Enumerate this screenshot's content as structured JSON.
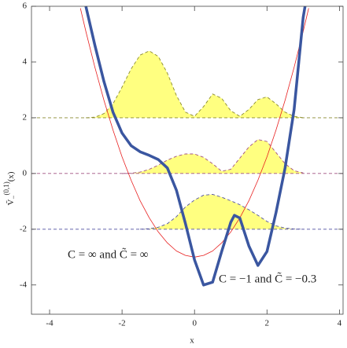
{
  "chart_data": {
    "type": "line",
    "x_label": "x",
    "y_label": {
      "base": "Ṽ",
      "sub": "−",
      "sup": "(0,1)",
      "arg": "(x)"
    },
    "xlim": [
      -4.5,
      4.1
    ],
    "xticks": [
      -4,
      -2,
      0,
      2,
      4
    ],
    "ylim": [
      -5.05,
      6
    ],
    "yticks": [
      -4,
      -2,
      0,
      2,
      4,
      6
    ],
    "potentials": [
      {
        "color": "#e82020",
        "x": [
          -3.15,
          -3.0,
          -2.75,
          -2.5,
          -2.25,
          -2.0,
          -1.75,
          -1.5,
          -1.25,
          -1.0,
          -0.75,
          -0.5,
          -0.25,
          0,
          0.25,
          0.5,
          0.75,
          1.0,
          1.25,
          1.5,
          1.75,
          2.0,
          2.25,
          2.5,
          2.75,
          3.0,
          3.15
        ],
        "values": [
          5.93,
          5.1,
          3.81,
          2.63,
          1.56,
          0.6,
          -0.24,
          -0.98,
          -1.59,
          -2.1,
          -2.49,
          -2.78,
          -2.94,
          -3.0,
          -2.94,
          -2.78,
          -2.49,
          -2.1,
          -1.59,
          -0.98,
          -0.24,
          0.6,
          1.56,
          2.63,
          3.81,
          5.1,
          5.93
        ]
      },
      {
        "color": "#3a56a0",
        "x": [
          -3.0,
          -2.75,
          -2.5,
          -2.25,
          -2.0,
          -1.75,
          -1.5,
          -1.25,
          -1.0,
          -0.75,
          -0.5,
          -0.25,
          0,
          0.25,
          0.5,
          0.75,
          1.0,
          1.1,
          1.25,
          1.5,
          1.75,
          2.0,
          2.25,
          2.5,
          2.75,
          3.0,
          3.05
        ],
        "values": [
          6,
          4.6,
          3.3,
          2.2,
          1.45,
          1.0,
          0.78,
          0.65,
          0.5,
          0.2,
          -0.6,
          -1.8,
          -3.1,
          -4.0,
          -3.9,
          -2.8,
          -1.75,
          -1.5,
          -1.6,
          -2.6,
          -3.3,
          -2.8,
          -1.4,
          0.2,
          2.3,
          5.6,
          6
        ]
      }
    ],
    "wavefunctions": [
      {
        "level": 2,
        "color": "#8a8a30",
        "fill": "#ffff80",
        "x": [
          -3,
          -2.75,
          -2.5,
          -2.25,
          -2,
          -1.75,
          -1.5,
          -1.25,
          -1,
          -0.75,
          -0.5,
          -0.25,
          0,
          0.25,
          0.5,
          0.75,
          1,
          1.25,
          1.5,
          1.75,
          2,
          2.25,
          2.5,
          2.75,
          3
        ],
        "values": [
          2,
          2.02,
          2.15,
          2.5,
          3.1,
          3.75,
          4.25,
          4.4,
          4.2,
          3.6,
          2.8,
          2.2,
          2.05,
          2.4,
          2.85,
          2.7,
          2.25,
          2.05,
          2.3,
          2.65,
          2.75,
          2.5,
          2.2,
          2.05,
          2.0
        ]
      },
      {
        "level": 0,
        "color": "#a05080",
        "fill": "#ffff80",
        "x": [
          -2,
          -1.75,
          -1.5,
          -1.25,
          -1,
          -0.75,
          -0.5,
          -0.25,
          0,
          0.25,
          0.5,
          0.75,
          1,
          1.25,
          1.5,
          1.75,
          2,
          2.25,
          2.5,
          2.75,
          3
        ],
        "values": [
          0,
          0.01,
          0.05,
          0.15,
          0.3,
          0.48,
          0.62,
          0.7,
          0.7,
          0.58,
          0.35,
          0.08,
          0.15,
          0.55,
          0.95,
          1.22,
          1.15,
          0.75,
          0.35,
          0.1,
          0.02
        ]
      },
      {
        "level": -2,
        "color": "#5050a0",
        "fill": "#ffff80",
        "x": [
          -1.5,
          -1.25,
          -1,
          -0.75,
          -0.5,
          -0.25,
          0,
          0.25,
          0.5,
          0.75,
          1,
          1.25,
          1.5,
          1.75,
          2,
          2.25,
          2.5,
          2.75,
          3
        ],
        "values": [
          -2,
          -1.98,
          -1.93,
          -1.8,
          -1.55,
          -1.2,
          -0.95,
          -0.78,
          -0.75,
          -0.85,
          -0.98,
          -1.12,
          -1.3,
          -1.5,
          -1.72,
          -1.88,
          -1.96,
          -1.99,
          -2.0
        ]
      }
    ],
    "annotations": [
      "C = ∞ and C̃ = ∞",
      "C = −1 and C̃ = −0.3"
    ]
  }
}
